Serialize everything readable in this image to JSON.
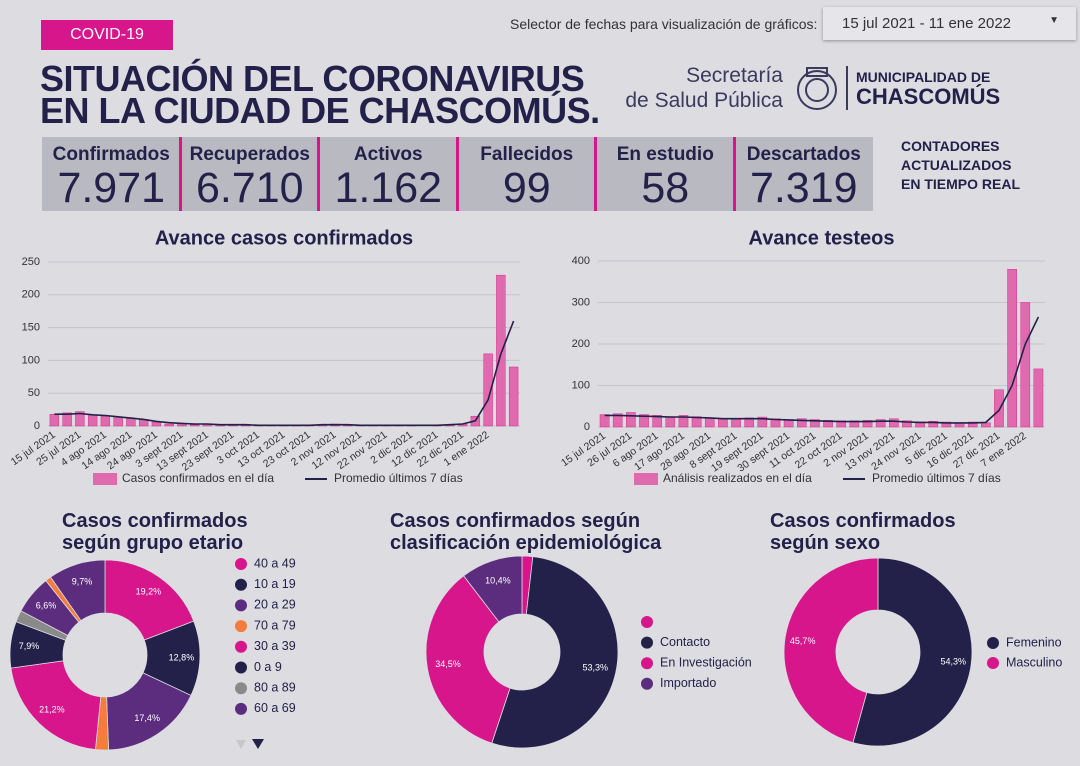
{
  "header": {
    "badge": "COVID-19",
    "date_selector_label": "Selector de fechas para visualización de gráficos:",
    "date_range": "15 jul 2021 - 11 ene 2022",
    "title_lines": [
      "SITUACIÓN DEL CORONAVIRUS",
      "EN LA CIUDAD DE CHASCOMÚS."
    ],
    "secretaria_lines": [
      "Secretaría",
      "de Salud Pública"
    ],
    "municipality_lines": [
      "MUNICIPALIDAD DE",
      "CHASCOMÚS"
    ]
  },
  "counters": [
    {
      "label": "Confirmados",
      "value": "7.971"
    },
    {
      "label": "Recuperados",
      "value": "6.710"
    },
    {
      "label": "Activos",
      "value": "1.162"
    },
    {
      "label": "Fallecidos",
      "value": "99"
    },
    {
      "label": "En estudio",
      "value": "58"
    },
    {
      "label": "Descartados",
      "value": "7.319"
    }
  ],
  "counters_note_lines": [
    "CONTADORES",
    "ACTUALIZADOS",
    "EN TIEMPO REAL"
  ],
  "chart_data": [
    {
      "type": "bar",
      "title": "Avance casos confirmados",
      "categories": [
        "15 jul 2021",
        null,
        "25 jul 2021",
        null,
        "4 ago 2021",
        null,
        "14 ago 2021",
        null,
        "24 ago 2021",
        null,
        "3 sept 2021",
        null,
        "13 sept 2021",
        null,
        "23 sept 2021",
        null,
        "3 oct 2021",
        null,
        "13 oct 2021",
        null,
        "23 oct 2021",
        null,
        "2 nov 2021",
        null,
        "12 nov 2021",
        null,
        "22 nov 2021",
        null,
        "2 dic 2021",
        null,
        "12 dic 2021",
        null,
        "22 dic 2021",
        null,
        "1 ene 2022",
        null,
        null
      ],
      "series": [
        {
          "name": "Casos confirmados en el día",
          "color": "#e06aae",
          "type": "bar",
          "values": [
            18,
            20,
            22,
            17,
            15,
            14,
            12,
            10,
            6,
            3,
            4,
            2,
            3,
            2,
            2,
            1,
            1,
            1,
            1,
            1,
            1,
            2,
            3,
            2,
            1,
            1,
            1,
            1,
            1,
            0,
            1,
            2,
            3,
            15,
            110,
            230,
            90
          ]
        },
        {
          "name": "Promedio últimos 7 días",
          "color": "#232149",
          "type": "line",
          "values": [
            18,
            18,
            19,
            17,
            16,
            14,
            12,
            10,
            7,
            5,
            4,
            3,
            3,
            2,
            2,
            2,
            1,
            1,
            1,
            1,
            1,
            2,
            2,
            2,
            1,
            1,
            1,
            1,
            1,
            1,
            1,
            2,
            3,
            8,
            40,
            110,
            160
          ]
        }
      ],
      "ylim": [
        0,
        250
      ],
      "yticks": [
        0,
        50,
        100,
        150,
        200,
        250
      ],
      "grid": true
    },
    {
      "type": "bar",
      "title": "Avance testeos",
      "categories": [
        "15 jul 2021",
        null,
        "26 jul 2021",
        null,
        "6 ago 2021",
        null,
        "17 ago 2021",
        null,
        "28 ago 2021",
        null,
        "8 sept 2021",
        null,
        "19 sept 2021",
        null,
        "30 sept 2021",
        null,
        "11 oct 2021",
        null,
        "22 oct 2021",
        null,
        "2 nov 2021",
        null,
        "13 nov 2021",
        null,
        "24 nov 2021",
        null,
        "5 dic 2021",
        null,
        "16 dic 2021",
        null,
        "27 dic 2021",
        null,
        "7 ene 2022",
        null
      ],
      "series": [
        {
          "name": "Análisis realizados en el día",
          "color": "#e06aae",
          "type": "bar",
          "values": [
            30,
            32,
            35,
            30,
            28,
            25,
            28,
            25,
            22,
            20,
            20,
            22,
            24,
            20,
            18,
            20,
            18,
            16,
            15,
            15,
            16,
            18,
            20,
            15,
            12,
            14,
            12,
            10,
            12,
            10,
            90,
            380,
            300,
            140
          ]
        },
        {
          "name": "Promedio últimos 7 días",
          "color": "#232149",
          "type": "line",
          "values": [
            28,
            28,
            27,
            26,
            25,
            24,
            24,
            23,
            22,
            20,
            20,
            20,
            20,
            18,
            17,
            16,
            15,
            14,
            13,
            13,
            13,
            14,
            14,
            12,
            11,
            11,
            10,
            10,
            10,
            11,
            40,
            100,
            200,
            265
          ]
        }
      ],
      "ylim": [
        0,
        400
      ],
      "yticks": [
        0,
        100,
        200,
        300,
        400
      ],
      "grid": true
    },
    {
      "type": "pie",
      "title": "Casos confirmados según grupo etario",
      "categories": [
        "40 a 49",
        "10 a 19",
        "20 a 29",
        "70 a 79",
        "30 a 39",
        "0 a 9",
        "80 a 89",
        "60 a 69",
        null,
        null
      ],
      "values": [
        19.2,
        12.8,
        17.4,
        2.2,
        21.2,
        7.9,
        2.0,
        6.6,
        1.0,
        9.7
      ],
      "value_labels": [
        "19,2%",
        "12,8%",
        "17,4%",
        null,
        "21,2%",
        "7,9%",
        null,
        "6,6%",
        null,
        "9,7%"
      ],
      "colors": [
        "#d6168a",
        "#232149",
        "#5c2d7e",
        "#f47c3c",
        "#d6168a",
        "#232149",
        "#8a8a8a",
        "#5c2d7e",
        "#f47c3c",
        "#5c2d7e"
      ]
    },
    {
      "type": "pie",
      "title": "Casos confirmados según clasificación epidemiológica",
      "categories": [
        null,
        "Contacto",
        "En Investigación",
        "Importado"
      ],
      "values": [
        1.8,
        53.3,
        34.5,
        10.4
      ],
      "value_labels": [
        null,
        "53,3%",
        "34,5%",
        "10,4%"
      ],
      "colors": [
        "#d6168a",
        "#232149",
        "#d6168a",
        "#5c2d7e"
      ]
    },
    {
      "type": "pie",
      "title": "Casos confirmados según sexo",
      "categories": [
        "Femenino",
        "Masculino"
      ],
      "values": [
        54.3,
        45.7
      ],
      "value_labels": [
        "54,3%",
        "45,7%"
      ],
      "colors": [
        "#232149",
        "#d6168a"
      ]
    }
  ]
}
